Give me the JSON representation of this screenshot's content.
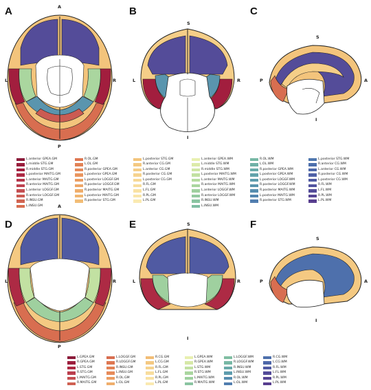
{
  "panels": {
    "A": {
      "letter": "A",
      "top": "A",
      "bottom": "P",
      "left": "L",
      "right": "R"
    },
    "B": {
      "letter": "B",
      "top": "S",
      "bottom": "I",
      "left": "L",
      "right": "R"
    },
    "C": {
      "letter": "C",
      "top": "S",
      "bottom": "I",
      "left": "P",
      "right": "A"
    },
    "D": {
      "letter": "D",
      "top": "A",
      "bottom": "P",
      "left": "L",
      "right": "R"
    },
    "E": {
      "letter": "E",
      "top": "S",
      "bottom": "I",
      "left": "L",
      "right": "R"
    },
    "F": {
      "letter": "F",
      "top": "S",
      "bottom": "I",
      "left": "P",
      "right": "A"
    }
  },
  "legend_top": {
    "columns": [
      [
        {
          "label": "L.anterior GPEA.GM",
          "color": "#8b1a3a"
        },
        {
          "label": "L.middle STG.GM",
          "color": "#991c3c"
        },
        {
          "label": "R.middle STG.GM",
          "color": "#a21e3e"
        },
        {
          "label": "L.posterior MAITG.GM",
          "color": "#ad2a44"
        },
        {
          "label": "L.anterior MAITG.GM",
          "color": "#b5354a"
        },
        {
          "label": "R.anterior MAITG.GM",
          "color": "#bd4250"
        },
        {
          "label": "L.anterior LOGGF.GM",
          "color": "#c44f52"
        },
        {
          "label": "R.anterior LOGGF.GM",
          "color": "#cb5b52"
        },
        {
          "label": "R.INSU.GM",
          "color": "#d16451"
        },
        {
          "label": "L.INSU.GM",
          "color": "#d86e50"
        }
      ],
      [
        {
          "label": "R.OL.GM",
          "color": "#de7752"
        },
        {
          "label": "L.OL.GM",
          "color": "#e28256"
        },
        {
          "label": "R.posterior GPEA.GM",
          "color": "#e68b5a"
        },
        {
          "label": "L.posterior GPEA.GM",
          "color": "#e9955f"
        },
        {
          "label": "L.posterior LOGGF.GM",
          "color": "#eb9d63"
        },
        {
          "label": "R.posterior LOGGF.GM",
          "color": "#eda668"
        },
        {
          "label": "R.posterior MAITG.GM",
          "color": "#efae6c"
        },
        {
          "label": "L.posterior MAITG.GM",
          "color": "#f1b671"
        },
        {
          "label": "R.posterior STG.GM",
          "color": "#f2bd76"
        }
      ],
      [
        {
          "label": "L.posterior STG.GM",
          "color": "#f3c47c"
        },
        {
          "label": "R.anterior CG.GM",
          "color": "#f4c982"
        },
        {
          "label": "L.anterior CG.GM",
          "color": "#f5ce88"
        },
        {
          "label": "R.posterior CG.GM",
          "color": "#f6d38f"
        },
        {
          "label": "L.posterior CG.GM",
          "color": "#f7d896"
        },
        {
          "label": "R.FL.GM",
          "color": "#f8dd9d"
        },
        {
          "label": "L.FL.GM",
          "color": "#f9e2a4"
        },
        {
          "label": "R.PL.GM",
          "color": "#f9e6aa"
        },
        {
          "label": "L.PL.GM",
          "color": "#faeab1"
        }
      ],
      [
        {
          "label": "L.anterior GPEA.WM",
          "color": "#e8f0b0"
        },
        {
          "label": "L.middle STG.WM",
          "color": "#dcebaa"
        },
        {
          "label": "R.middle STG.WM",
          "color": "#cfe6a5"
        },
        {
          "label": "L.posterior MAITG.WM",
          "color": "#c2e1a2"
        },
        {
          "label": "L.anterior MAITG.WM",
          "color": "#b6dca0"
        },
        {
          "label": "R.anterior MAITG.WM",
          "color": "#aad69f"
        },
        {
          "label": "L.anterior LOGGF.WM",
          "color": "#9fd09f"
        },
        {
          "label": "R.anterior LOGGF.WM",
          "color": "#94caa0"
        },
        {
          "label": "R.INSU.WM",
          "color": "#8ac4a1"
        },
        {
          "label": "L.INSU.WM",
          "color": "#80bea3"
        }
      ],
      [
        {
          "label": "R.OL.WM",
          "color": "#77b8a5"
        },
        {
          "label": "L.OL.WM",
          "color": "#70b1a7"
        },
        {
          "label": "R.posterior GPEA.WM",
          "color": "#69aaa9"
        },
        {
          "label": "L.posterior GPEA.WM",
          "color": "#63a3ab"
        },
        {
          "label": "L.posterior LOGGF.WM",
          "color": "#5e9cad"
        },
        {
          "label": "R.posterior LOGGF.WM",
          "color": "#5a95ae"
        },
        {
          "label": "R.posterior MAITG.WM",
          "color": "#568daf"
        },
        {
          "label": "L.posterior MAITG.WM",
          "color": "#5386af"
        },
        {
          "label": "R.posterior STG.WM",
          "color": "#517eaf"
        }
      ],
      [
        {
          "label": "L.posterior STG.WM",
          "color": "#4f77ae"
        },
        {
          "label": "R.anterior CG.WM",
          "color": "#4e70ac"
        },
        {
          "label": "L.anterior CG.WM",
          "color": "#4e68a9"
        },
        {
          "label": "R.posterior CG.WM",
          "color": "#4f61a6"
        },
        {
          "label": "L.posterior CG.WM",
          "color": "#505aa2"
        },
        {
          "label": "R.FL.WM",
          "color": "#52539e"
        },
        {
          "label": "L.FL.WM",
          "color": "#544c99"
        },
        {
          "label": "R.PL.WM",
          "color": "#564594"
        },
        {
          "label": "L.PL.WM",
          "color": "#583e8f"
        }
      ]
    ]
  },
  "legend_bottom": {
    "columns": [
      [
        {
          "label": "L.GPEA.GM",
          "color": "#8b1a3a"
        },
        {
          "label": "R.GPEA.GM",
          "color": "#9c1d3d"
        },
        {
          "label": "L.STG.GM",
          "color": "#ad2a44"
        },
        {
          "label": "R.STG.GM",
          "color": "#bb3f4e"
        },
        {
          "label": "L.MAITG.GM",
          "color": "#c44f52"
        },
        {
          "label": "R.MAITG.GM",
          "color": "#cf6152"
        }
      ],
      [
        {
          "label": "L.LOGGF.GM",
          "color": "#d86e50"
        },
        {
          "label": "R.LOGGF.GM",
          "color": "#de7752"
        },
        {
          "label": "R.INSU.GM",
          "color": "#e28256"
        },
        {
          "label": "L.INSU.GM",
          "color": "#e68b5a"
        },
        {
          "label": "R.OL.GM",
          "color": "#eb9d63"
        },
        {
          "label": "L.OL.GM",
          "color": "#efae6c"
        }
      ],
      [
        {
          "label": "R.CG.GM",
          "color": "#f2bd76"
        },
        {
          "label": "L.CG.GM",
          "color": "#f4c982"
        },
        {
          "label": "R.FL.GM",
          "color": "#f6d38f"
        },
        {
          "label": "L.FL.GM",
          "color": "#f8dd9d"
        },
        {
          "label": "R.PL.GM",
          "color": "#f9e2a4"
        },
        {
          "label": "L.PL.GM",
          "color": "#faeab1"
        }
      ],
      [
        {
          "label": "L.GPEA.WM",
          "color": "#e8f0b0"
        },
        {
          "label": "R.GPEA.WM",
          "color": "#d6e8a7"
        },
        {
          "label": "L.STG.WM",
          "color": "#c2e1a2"
        },
        {
          "label": "R.STG.WM",
          "color": "#aad69f"
        },
        {
          "label": "L.MAITG.WM",
          "color": "#9fd09f"
        },
        {
          "label": "R.MAITG.WM",
          "color": "#8ac4a1"
        }
      ],
      [
        {
          "label": "L.LOGGF.WM",
          "color": "#80bea3"
        },
        {
          "label": "R.LOGGF.WM",
          "color": "#77b8a5"
        },
        {
          "label": "R.INSU.WM",
          "color": "#69aaa9"
        },
        {
          "label": "L.INSU.WM",
          "color": "#5e9cad"
        },
        {
          "label": "R.OL.WM",
          "color": "#568daf"
        },
        {
          "label": "L.OL.WM",
          "color": "#517eaf"
        }
      ],
      [
        {
          "label": "R.CG.WM",
          "color": "#4e70ac"
        },
        {
          "label": "L.CG.WM",
          "color": "#4e68a9"
        },
        {
          "label": "R.FL.WM",
          "color": "#505aa2"
        },
        {
          "label": "L.FL.WM",
          "color": "#544c99"
        },
        {
          "label": "R.PL.WM",
          "color": "#564594"
        },
        {
          "label": "L.PL.WM",
          "color": "#583e8f"
        }
      ]
    ]
  }
}
